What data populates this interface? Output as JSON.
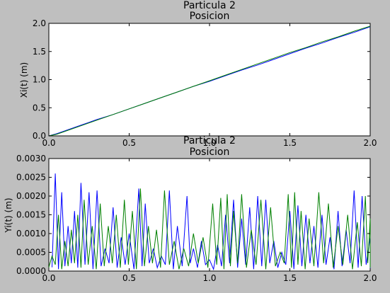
{
  "chart_data": [
    {
      "type": "line",
      "title": "Particula 2",
      "subtitle": "Posicion",
      "xlabel": "",
      "ylabel": "Xi(t) (m)",
      "xlim": [
        0,
        2.0
      ],
      "ylim": [
        0,
        2.0
      ],
      "xticks": [
        "0.0",
        "0.5",
        "1.0",
        "1.5",
        "2.0"
      ],
      "yticks": [
        "0.0",
        "0.5",
        "1.0",
        "1.5",
        "2.0"
      ],
      "grid": false,
      "series": [
        {
          "color": "#0000ff",
          "x": [
            0,
            0.05,
            0.1,
            0.2,
            0.3,
            0.4,
            0.5,
            0.6,
            0.7,
            0.8,
            0.9,
            1.0,
            1.1,
            1.2,
            1.3,
            1.4,
            1.5,
            1.6,
            1.7,
            1.8,
            1.9,
            2.0
          ],
          "values": [
            0,
            0.04,
            0.09,
            0.19,
            0.29,
            0.38,
            0.48,
            0.58,
            0.68,
            0.78,
            0.88,
            0.97,
            1.07,
            1.17,
            1.26,
            1.36,
            1.46,
            1.56,
            1.65,
            1.75,
            1.84,
            1.94
          ]
        },
        {
          "color": "#008000",
          "x": [
            0,
            0.05,
            0.1,
            0.2,
            0.3,
            0.4,
            0.5,
            0.6,
            0.7,
            0.8,
            0.9,
            1.0,
            1.1,
            1.2,
            1.3,
            1.4,
            1.5,
            1.6,
            1.7,
            1.8,
            1.9,
            2.0
          ],
          "values": [
            0,
            0.03,
            0.08,
            0.18,
            0.28,
            0.38,
            0.48,
            0.58,
            0.68,
            0.78,
            0.88,
            0.98,
            1.08,
            1.18,
            1.28,
            1.38,
            1.48,
            1.57,
            1.67,
            1.76,
            1.86,
            1.95
          ]
        }
      ]
    },
    {
      "type": "line",
      "title": "Particula 2",
      "subtitle": "Posicion",
      "xlabel": "",
      "ylabel": "Yi(t) (m)",
      "xlim": [
        0,
        2.0
      ],
      "ylim": [
        0,
        0.003
      ],
      "xticks": [
        "0.0",
        "0.5",
        "1.0",
        "1.5",
        "2.0"
      ],
      "yticks": [
        "0.0000",
        "0.0005",
        "0.0010",
        "0.0015",
        "0.0020",
        "0.0025",
        "0.0030"
      ],
      "grid": false,
      "series": [
        {
          "color": "#0000ff",
          "x": [
            0.04,
            0.08,
            0.12,
            0.16,
            0.2,
            0.25,
            0.3,
            0.35,
            0.4,
            0.45,
            0.5,
            0.56,
            0.6,
            0.65,
            0.7,
            0.75,
            0.8,
            0.86,
            0.9,
            0.95,
            1.0,
            1.05,
            1.1,
            1.15,
            1.2,
            1.25,
            1.3,
            1.35,
            1.4,
            1.45,
            1.5,
            1.55,
            1.6,
            1.65,
            1.7,
            1.75,
            1.8,
            1.85,
            1.9,
            1.95,
            2.0
          ],
          "values": [
            0.0026,
            0.0021,
            0.0012,
            0.0016,
            0.00235,
            0.0021,
            0.00215,
            0.0006,
            0.0017,
            0.0009,
            0.001,
            0.0022,
            0.0018,
            0.0006,
            0.0004,
            0.00215,
            0.0012,
            0.002,
            0.0006,
            0.0008,
            0.0003,
            0.0007,
            0.0015,
            0.0019,
            0.0014,
            0.0017,
            0.002,
            0.0019,
            0.0008,
            0.0005,
            0.0016,
            0.00175,
            0.0015,
            0.0012,
            0.0015,
            0.0009,
            0.0016,
            0.0011,
            0.00215,
            0.002,
            0.0009
          ]
        },
        {
          "color": "#008000",
          "x": [
            0.02,
            0.06,
            0.1,
            0.14,
            0.18,
            0.22,
            0.27,
            0.32,
            0.37,
            0.42,
            0.47,
            0.52,
            0.57,
            0.62,
            0.67,
            0.72,
            0.78,
            0.84,
            0.9,
            0.96,
            1.02,
            1.07,
            1.11,
            1.15,
            1.2,
            1.26,
            1.32,
            1.38,
            1.44,
            1.49,
            1.53,
            1.57,
            1.62,
            1.68,
            1.74,
            1.8,
            1.86,
            1.92,
            1.97,
            2.0
          ],
          "values": [
            0.0004,
            0.0015,
            0.0008,
            0.0011,
            0.0015,
            0.0019,
            0.0012,
            0.0018,
            0.0012,
            0.0015,
            0.0019,
            0.0016,
            0.0022,
            0.0012,
            0.0011,
            0.00215,
            0.0008,
            0.0006,
            0.001,
            0.0009,
            0.0018,
            0.00195,
            0.00205,
            0.0016,
            0.00205,
            0.0011,
            0.0019,
            0.0017,
            0.0005,
            0.00205,
            0.0021,
            0.0016,
            0.0014,
            0.0021,
            0.0018,
            0.0012,
            0.0015,
            0.0013,
            0.002,
            0.0014
          ]
        }
      ]
    }
  ]
}
